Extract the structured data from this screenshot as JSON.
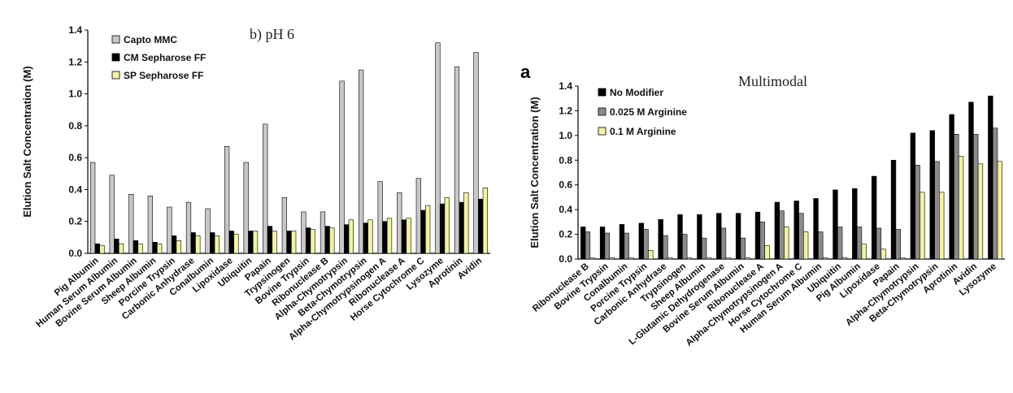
{
  "chart_data": [
    {
      "type": "bar",
      "title": "b) pH 6",
      "ylabel": "Elution Salt Concentration (M)",
      "xlabel": "",
      "ylim": [
        0,
        1.4
      ],
      "yticks": [
        "0.0",
        "0.2",
        "0.4",
        "0.6",
        "0.8",
        "1.0",
        "1.2",
        "1.4"
      ],
      "legend_position": "top-left",
      "categories": [
        "Pig Albumin",
        "Human Serum Albumin",
        "Bovine Serum Albumin",
        "Sheep Albumin",
        "Porcine Trypsin",
        "Carbonic Anhydrase",
        "Conalbumin",
        "Lipoxidase",
        "Ubiquitin",
        "Papain",
        "Trypsinogen",
        "Bovine Trypsin",
        "Ribonuclease B",
        "Alpha-Chymotrypsin",
        "Beta-Chymotrypsin",
        "Alpha-Chymotrypsinogen A",
        "Ribonuclease A",
        "Horse Cytochrome C",
        "Lysozyme",
        "Aprotinin",
        "Avidin"
      ],
      "series": [
        {
          "name": "Capto MMC",
          "color": "#c8c8c8",
          "values": [
            0.57,
            0.49,
            0.37,
            0.36,
            0.29,
            0.32,
            0.28,
            0.67,
            0.57,
            0.81,
            0.35,
            0.26,
            0.26,
            1.08,
            1.15,
            0.45,
            0.38,
            0.47,
            1.32,
            1.17,
            1.26
          ]
        },
        {
          "name": "CM Sepharose FF",
          "color": "#000000",
          "values": [
            0.06,
            0.09,
            0.08,
            0.07,
            0.11,
            0.13,
            0.13,
            0.14,
            0.14,
            0.17,
            0.14,
            0.16,
            0.17,
            0.18,
            0.19,
            0.2,
            0.21,
            0.27,
            0.31,
            0.32,
            0.34
          ]
        },
        {
          "name": "SP Sepharose FF",
          "color": "#f2f2a0",
          "values": [
            0.05,
            0.06,
            0.06,
            0.06,
            0.08,
            0.11,
            0.11,
            0.12,
            0.14,
            0.14,
            0.14,
            0.15,
            0.16,
            0.21,
            0.21,
            0.22,
            0.22,
            0.3,
            0.35,
            0.38,
            0.41
          ]
        }
      ]
    },
    {
      "type": "bar",
      "panel_letter": "a",
      "title": "Multimodal",
      "ylabel": "Elution Salt Concentration (M)",
      "xlabel": "",
      "ylim": [
        0,
        1.4
      ],
      "yticks": [
        "0.0",
        "0.2",
        "0.4",
        "0.6",
        "0.8",
        "1.0",
        "1.2",
        "1.4"
      ],
      "legend_position": "top-left",
      "categories": [
        "Ribonuclease B",
        "Bovine Trypsin",
        "Conalbumin",
        "Porcine Trypsin",
        "Carbonic Anhydrase",
        "Trypsinogen",
        "Sheep Albumin",
        "L-Glutamic Dehydrogenase",
        "Bovine Serum Albumin",
        "Ribonuclease A",
        "Alpha-Chymotrypsinogen A",
        "Horse Cytochrome C",
        "Human Serum Albumin",
        "Ubiquitin",
        "Pig Albumin",
        "Lipoxidase",
        "Papain",
        "Alpha-Chymotrypsin",
        "Beta-Chymotrypsin",
        "Aprotinin",
        "Avidin",
        "Lysozyme"
      ],
      "series": [
        {
          "name": "No Modifier",
          "color": "#000000",
          "values": [
            0.26,
            0.26,
            0.28,
            0.29,
            0.32,
            0.36,
            0.36,
            0.37,
            0.37,
            0.38,
            0.46,
            0.47,
            0.49,
            0.56,
            0.57,
            0.67,
            0.8,
            1.02,
            1.04,
            1.17,
            1.27,
            1.32
          ]
        },
        {
          "name": "0.025 M Arginine",
          "color": "#8a8a8a",
          "values": [
            0.22,
            0.21,
            0.21,
            0.24,
            0.19,
            0.2,
            0.17,
            0.25,
            0.17,
            0.3,
            0.39,
            0.37,
            0.22,
            0.26,
            0.26,
            0.25,
            0.24,
            0.76,
            0.79,
            1.01,
            1.01,
            1.06
          ]
        },
        {
          "name": "0.1 M Arginine",
          "color": "#f2f2a0",
          "values": [
            0.01,
            0.01,
            0.01,
            0.07,
            0.01,
            0.01,
            0.01,
            0.01,
            0.01,
            0.11,
            0.26,
            0.22,
            0.01,
            0.01,
            0.12,
            0.08,
            0.01,
            0.54,
            0.54,
            0.83,
            0.77,
            0.79
          ]
        }
      ]
    }
  ]
}
